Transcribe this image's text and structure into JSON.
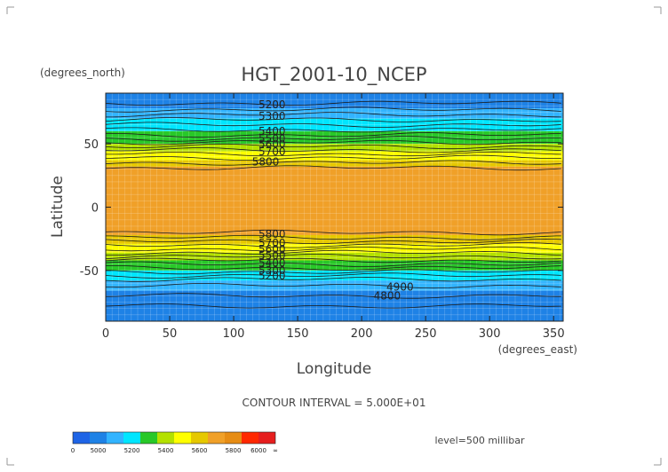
{
  "chart_data": {
    "type": "heatmap",
    "title": "HGT_2001-10_NCEP",
    "xlabel": "Longitude",
    "ylabel": "Latitude",
    "x_unit_label": "(degrees_east)",
    "y_unit_label": "(degrees_north)",
    "xlim": [
      0,
      357.5
    ],
    "ylim": [
      -90,
      90
    ],
    "x_ticks": [
      "0",
      "50",
      "100",
      "150",
      "200",
      "250",
      "300",
      "350"
    ],
    "y_ticks": [
      "50",
      "0",
      "-50"
    ],
    "contour_interval_text": "CONTOUR INTERVAL = 5.000E+01",
    "level_text": "level=500 millibar",
    "bands": [
      {
        "lat_min": 78,
        "lat_max": 90,
        "color": "#1e82e6"
      },
      {
        "lat_min": 70,
        "lat_max": 78,
        "color": "#32b4ff"
      },
      {
        "lat_min": 60,
        "lat_max": 70,
        "color": "#00e6ff"
      },
      {
        "lat_min": 50,
        "lat_max": 60,
        "color": "#28c828"
      },
      {
        "lat_min": 44,
        "lat_max": 50,
        "color": "#b4e100"
      },
      {
        "lat_min": 37,
        "lat_max": 44,
        "color": "#ffff00"
      },
      {
        "lat_min": 32,
        "lat_max": 37,
        "color": "#e6c800"
      },
      {
        "lat_min": -22,
        "lat_max": 32,
        "color": "#f0a028"
      },
      {
        "lat_min": -29,
        "lat_max": -22,
        "color": "#e6c800"
      },
      {
        "lat_min": -36,
        "lat_max": -29,
        "color": "#ffff00"
      },
      {
        "lat_min": -42,
        "lat_max": -36,
        "color": "#b4e100"
      },
      {
        "lat_min": -50,
        "lat_max": -42,
        "color": "#28c828"
      },
      {
        "lat_min": -58,
        "lat_max": -50,
        "color": "#00e6ff"
      },
      {
        "lat_min": -66,
        "lat_max": -58,
        "color": "#32b4ff"
      },
      {
        "lat_min": -90,
        "lat_max": -66,
        "color": "#1e82e6"
      }
    ],
    "contour_lats": [
      82,
      77,
      73,
      69,
      65,
      61,
      57,
      54,
      51,
      48,
      45,
      42,
      39,
      35,
      31,
      -20,
      -24,
      -27,
      -30,
      -33,
      -36,
      -39,
      -42,
      -45,
      -48,
      -51,
      -54,
      -57,
      -62,
      -70,
      -78
    ],
    "contour_labels": [
      {
        "text": "5200",
        "lon": 130,
        "lat": 78
      },
      {
        "text": "5300",
        "lon": 130,
        "lat": 69
      },
      {
        "text": "5400",
        "lon": 130,
        "lat": 57
      },
      {
        "text": "5500",
        "lon": 130,
        "lat": 51
      },
      {
        "text": "5600",
        "lon": 130,
        "lat": 47
      },
      {
        "text": "5700",
        "lon": 130,
        "lat": 41
      },
      {
        "text": "5800",
        "lon": 125,
        "lat": 33
      },
      {
        "text": "5800",
        "lon": 130,
        "lat": -24
      },
      {
        "text": "5700",
        "lon": 130,
        "lat": -31
      },
      {
        "text": "5600",
        "lon": 130,
        "lat": -36
      },
      {
        "text": "5500",
        "lon": 130,
        "lat": -41
      },
      {
        "text": "5400",
        "lon": 130,
        "lat": -47
      },
      {
        "text": "5300",
        "lon": 130,
        "lat": -53
      },
      {
        "text": "5200",
        "lon": 130,
        "lat": -57
      },
      {
        "text": "4900",
        "lon": 230,
        "lat": -66
      },
      {
        "text": "4800",
        "lon": 220,
        "lat": -73
      }
    ],
    "colorbar": {
      "colors": [
        "#1e64e6",
        "#1e82e6",
        "#32b4ff",
        "#00e6ff",
        "#28c828",
        "#b4e100",
        "#ffff00",
        "#e6c800",
        "#f0a028",
        "#e68c14",
        "#ff2800",
        "#e61e1e"
      ],
      "labels": [
        "0",
        "5000",
        "5200",
        "5400",
        "5600",
        "5800",
        "6000",
        "∞"
      ]
    }
  }
}
